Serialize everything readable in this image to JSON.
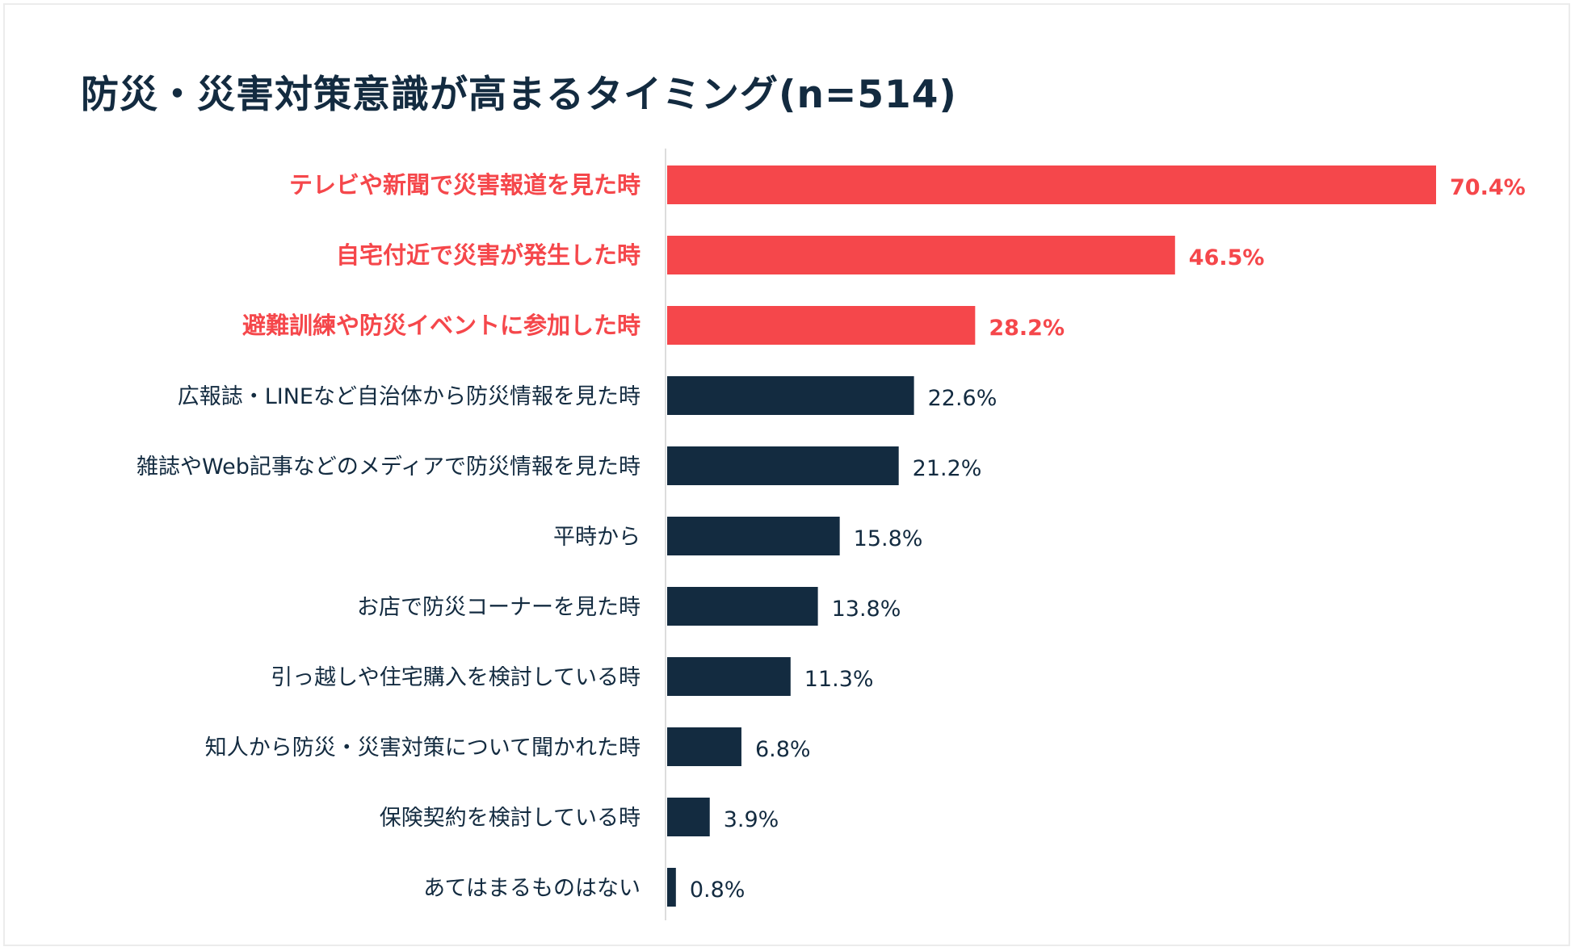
{
  "chart_data": {
    "type": "bar",
    "orientation": "horizontal",
    "title": "防災・災害対策意識が高まるタイミング(n=514)",
    "categories": [
      "テレビや新聞で災害報道を見た時",
      "自宅付近で災害が発生した時",
      "避難訓練や防災イベントに参加した時",
      "広報誌・LINEなど自治体から防災情報を見た時",
      "雑誌やWeb記事などのメディアで防災情報を見た時",
      "平時から",
      "お店で防災コーナーを見た時",
      "引っ越しや住宅購入を検討している時",
      "知人から防災・災害対策について聞かれた時",
      "保険契約を検討している時",
      "あてはまるものはない"
    ],
    "values": [
      70.4,
      46.5,
      28.2,
      22.6,
      21.2,
      15.8,
      13.8,
      11.3,
      6.8,
      3.9,
      0.8
    ],
    "value_labels": [
      "70.4%",
      "46.5%",
      "28.2%",
      "22.6%",
      "21.2%",
      "15.8%",
      "13.8%",
      "11.3%",
      "6.8%",
      "3.9%",
      "0.8%"
    ],
    "highlighted": [
      true,
      true,
      true,
      false,
      false,
      false,
      false,
      false,
      false,
      false,
      false
    ],
    "xlim": [
      0,
      70.4
    ],
    "xlabel": "",
    "ylabel": "",
    "grid": false,
    "legend": "none"
  },
  "colors": {
    "highlight": "#f5474b",
    "normal": "#132b40",
    "axis": "#dddddd",
    "title": "#132b40",
    "background": "#ffffff"
  }
}
